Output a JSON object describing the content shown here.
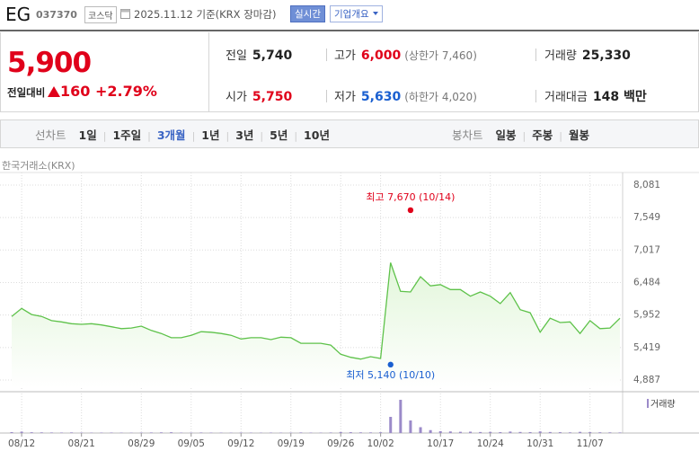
{
  "header": {
    "name": "EG",
    "code": "037370",
    "market": "코스닥",
    "date": "2025.11.12 기준(KRX 장마감)",
    "realtime": "실시간",
    "company": "기업개요"
  },
  "price": {
    "current": "5,900",
    "change_label": "전일대비",
    "change": "160",
    "rate": "+2.79%"
  },
  "summary": {
    "rows": [
      [
        {
          "label": "전일",
          "value": "5,740"
        },
        {
          "label": "고가",
          "value": "6,000",
          "note": "(상한가 7,460)"
        },
        {
          "label": "거래량",
          "value": "25,330"
        }
      ],
      [
        {
          "label": "시가",
          "value": "5,750"
        },
        {
          "label": "저가",
          "value": "5,630",
          "note": "(하한가 4,020)"
        },
        {
          "label": "거래대금",
          "value": "148 백만"
        }
      ]
    ]
  },
  "tabs": {
    "line_label": "선차트",
    "line": [
      "1일",
      "1주일",
      "3개월",
      "1년",
      "3년",
      "5년",
      "10년"
    ],
    "selected": 2,
    "candle_label": "봉차트",
    "candle": [
      "일봉",
      "주봉",
      "월봉"
    ]
  },
  "chart_data": {
    "type": "area",
    "source": "한국거래소(KRX)",
    "color": "#5ec24a",
    "fill_color": "#e2f6da",
    "categories": [
      "08/11",
      "08/12",
      "08/13",
      "08/14",
      "08/18",
      "08/19",
      "08/20",
      "08/21",
      "08/22",
      "08/25",
      "08/26",
      "08/27",
      "08/28",
      "08/29",
      "09/01",
      "09/02",
      "09/03",
      "09/04",
      "09/05",
      "09/08",
      "09/09",
      "09/10",
      "09/11",
      "09/12",
      "09/15",
      "09/16",
      "09/17",
      "09/18",
      "09/19",
      "09/22",
      "09/23",
      "09/24",
      "09/25",
      "09/26",
      "09/29",
      "09/30",
      "10/01",
      "10/02",
      "10/10",
      "10/13",
      "10/14",
      "10/15",
      "10/16",
      "10/17",
      "10/20",
      "10/21",
      "10/22",
      "10/23",
      "10/24",
      "10/27",
      "10/28",
      "10/29",
      "10/30",
      "10/31",
      "11/03",
      "11/04",
      "11/05",
      "11/06",
      "11/07",
      "11/10",
      "11/11",
      "11/12"
    ],
    "values": [
      5930,
      6060,
      5960,
      5930,
      5860,
      5840,
      5810,
      5800,
      5810,
      5790,
      5760,
      5730,
      5740,
      5770,
      5700,
      5650,
      5580,
      5580,
      5620,
      5680,
      5670,
      5650,
      5620,
      5560,
      5580,
      5580,
      5550,
      5590,
      5580,
      5490,
      5490,
      5490,
      5460,
      5310,
      5260,
      5230,
      5270,
      5240,
      6810,
      6340,
      6330,
      6580,
      6430,
      6450,
      6370,
      6370,
      6260,
      6330,
      6260,
      6140,
      6320,
      6040,
      5990,
      5670,
      5900,
      5830,
      5840,
      5650,
      5860,
      5730,
      5740,
      5900
    ],
    "ylim": [
      4755,
      8199
    ],
    "yticks": [
      {
        "value": 4887,
        "label": "4,887"
      },
      {
        "value": 5419,
        "label": "5,419"
      },
      {
        "value": 5952,
        "label": "5,952"
      },
      {
        "value": 6484,
        "label": "6,484"
      },
      {
        "value": 7017,
        "label": "7,017"
      },
      {
        "value": 7549,
        "label": "7,549"
      },
      {
        "value": 8081,
        "label": "8,081"
      }
    ],
    "xticks": [
      "08/12",
      "08/21",
      "08/29",
      "09/05",
      "09/12",
      "09/19",
      "09/26",
      "10/02",
      "10/17",
      "10/24",
      "10/31",
      "11/07"
    ],
    "grid": true,
    "annotations": [
      {
        "label": "최고 7,670 (10/14)",
        "value": 7670,
        "date": "10/14",
        "color": "#e0001a"
      },
      {
        "label": "최저 5,140 (10/10)",
        "value": 5140,
        "date": "10/10",
        "color": "#1a5fd0"
      }
    ],
    "volume": {
      "name": "거래량",
      "color": "#9b8ac9",
      "ylim": [
        0,
        1600000
      ],
      "values": [
        40000,
        60000,
        35000,
        30000,
        25000,
        22000,
        28000,
        20000,
        18000,
        20000,
        22000,
        19000,
        17000,
        21000,
        25000,
        30000,
        35000,
        20000,
        18000,
        24000,
        20000,
        19000,
        17000,
        22000,
        18000,
        16000,
        21000,
        19000,
        17000,
        26000,
        20000,
        18000,
        24000,
        45000,
        38000,
        30000,
        28000,
        35000,
        720000,
        1480000,
        560000,
        260000,
        130000,
        80000,
        70000,
        55000,
        60000,
        45000,
        50000,
        40000,
        65000,
        48000,
        42000,
        70000,
        45000,
        38000,
        30000,
        52000,
        40000,
        33000,
        30000,
        25330
      ]
    }
  }
}
